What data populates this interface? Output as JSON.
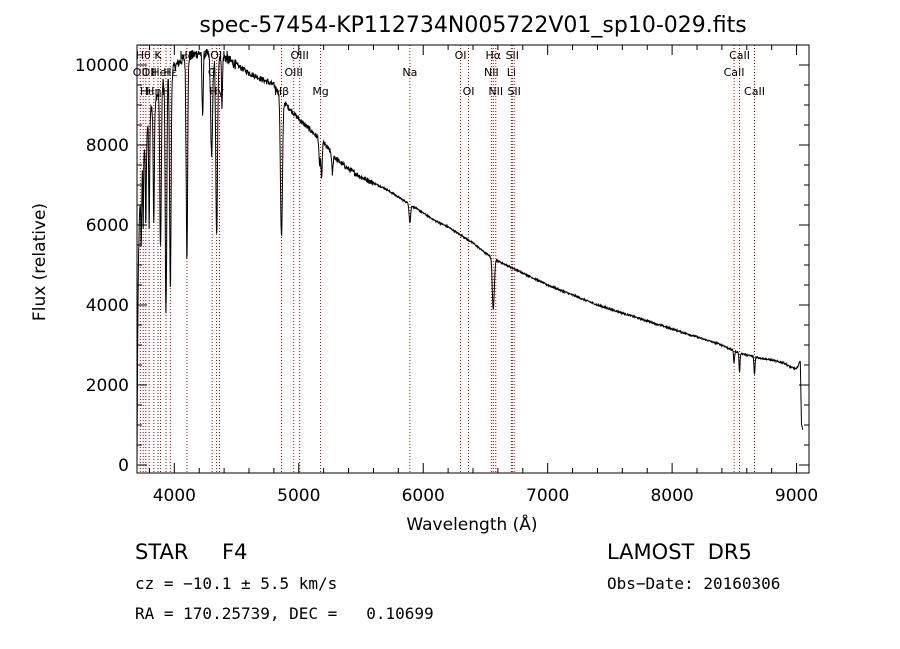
{
  "chart_data": {
    "type": "line",
    "title": "spec-57454-KP112734N005722V01_sp10-029.fits",
    "xlabel": "Wavelength (Å)",
    "ylabel": "Flux (relative)",
    "xlim": [
      3700,
      9100
    ],
    "ylim": [
      -200,
      10500
    ],
    "xticks": [
      4000,
      5000,
      6000,
      7000,
      8000,
      9000
    ],
    "xtick_labels": [
      "4000",
      "5000",
      "6000",
      "7000",
      "8000",
      "9000"
    ],
    "yticks": [
      0,
      2000,
      4000,
      6000,
      8000,
      10000
    ],
    "ytick_labels": [
      "0",
      "2000",
      "4000",
      "6000",
      "8000",
      "10000"
    ],
    "grid": false,
    "series": [
      {
        "continuum": [
          [
            3700,
            0
          ],
          [
            3705,
            2700
          ],
          [
            3712,
            5200
          ],
          [
            3720,
            6200
          ],
          [
            3750,
            7800
          ],
          [
            3800,
            8800
          ],
          [
            3850,
            9200
          ],
          [
            3900,
            9500
          ],
          [
            3950,
            9800
          ],
          [
            4000,
            9950
          ],
          [
            4050,
            10100
          ],
          [
            4100,
            10200
          ],
          [
            4150,
            10250
          ],
          [
            4200,
            10300
          ],
          [
            4300,
            10250
          ],
          [
            4400,
            10200
          ],
          [
            4500,
            10000
          ],
          [
            4600,
            9800
          ],
          [
            4700,
            9650
          ],
          [
            4800,
            9500
          ],
          [
            4900,
            9000
          ],
          [
            5000,
            8650
          ],
          [
            5100,
            8350
          ],
          [
            5200,
            8050
          ],
          [
            5300,
            7650
          ],
          [
            5400,
            7400
          ],
          [
            5500,
            7200
          ],
          [
            5600,
            7050
          ],
          [
            5700,
            6900
          ],
          [
            5800,
            6700
          ],
          [
            5900,
            6500
          ],
          [
            6000,
            6300
          ],
          [
            6100,
            6100
          ],
          [
            6200,
            5950
          ],
          [
            6300,
            5750
          ],
          [
            6400,
            5550
          ],
          [
            6500,
            5300
          ],
          [
            6600,
            5100
          ],
          [
            6700,
            4950
          ],
          [
            6800,
            4800
          ],
          [
            6900,
            4650
          ],
          [
            7000,
            4500
          ],
          [
            7200,
            4250
          ],
          [
            7400,
            4000
          ],
          [
            7600,
            3800
          ],
          [
            7800,
            3600
          ],
          [
            8000,
            3400
          ],
          [
            8200,
            3200
          ],
          [
            8400,
            3000
          ],
          [
            8500,
            2850
          ],
          [
            8600,
            2750
          ],
          [
            8700,
            2680
          ],
          [
            8800,
            2620
          ],
          [
            8900,
            2550
          ],
          [
            8950,
            2450
          ],
          [
            9000,
            2400
          ],
          [
            9030,
            2600
          ],
          [
            9040,
            1000
          ],
          [
            9050,
            900
          ]
        ],
        "absorption": [
          [
            3734,
            1500,
            3
          ],
          [
            3750,
            1800,
            3
          ],
          [
            3771,
            2200,
            4
          ],
          [
            3798,
            2800,
            4
          ],
          [
            3835,
            3000,
            5
          ],
          [
            3889,
            4000,
            6
          ],
          [
            3933,
            6000,
            6
          ],
          [
            3968,
            5500,
            6
          ],
          [
            4101,
            5000,
            6
          ],
          [
            4227,
            1500,
            5
          ],
          [
            4300,
            2500,
            8
          ],
          [
            4340,
            4500,
            7
          ],
          [
            4383,
            1200,
            4
          ],
          [
            4861,
            3500,
            8
          ],
          [
            5167,
            700,
            5
          ],
          [
            5183,
            1000,
            5
          ],
          [
            5270,
            500,
            5
          ],
          [
            5893,
            450,
            6
          ],
          [
            6563,
            1300,
            8
          ],
          [
            8498,
            300,
            4
          ],
          [
            8542,
            500,
            4
          ],
          [
            8662,
            450,
            4
          ]
        ]
      }
    ],
    "lines": [
      {
        "wave": 3727,
        "label": "OII",
        "row": 1
      },
      {
        "wave": 3750,
        "label": "Hθ",
        "row": 0
      },
      {
        "wave": 3771,
        "label": "Hι",
        "row": 2
      },
      {
        "wave": 3798,
        "label": "OII",
        "row": 1
      },
      {
        "wave": 3835,
        "label": "Hη",
        "row": 2
      },
      {
        "wave": 3869,
        "label": "K",
        "row": 0
      },
      {
        "wave": 3889,
        "label": "HeI",
        "row": 1
      },
      {
        "wave": 3933,
        "label": "H",
        "row": 2
      },
      {
        "wave": 3968,
        "label": "Hε",
        "row": 1
      },
      {
        "wave": 4101,
        "label": "Hδ",
        "row": 0
      },
      {
        "wave": 4304,
        "label": "G",
        "row": 1
      },
      {
        "wave": 4340,
        "label": "Hγ",
        "row": 2
      },
      {
        "wave": 4363,
        "label": "OIII",
        "row": 0
      },
      {
        "wave": 4861,
        "label": "Hβ",
        "row": 2
      },
      {
        "wave": 4959,
        "label": "OIII",
        "row": 1
      },
      {
        "wave": 5007,
        "label": "OIII",
        "row": 0
      },
      {
        "wave": 5175,
        "label": "Mg",
        "row": 2
      },
      {
        "wave": 5893,
        "label": "Na",
        "row": 1
      },
      {
        "wave": 6300,
        "label": "OI",
        "row": 0
      },
      {
        "wave": 6364,
        "label": "OI",
        "row": 2
      },
      {
        "wave": 6548,
        "label": "NII",
        "row": 1
      },
      {
        "wave": 6563,
        "label": "Hα",
        "row": 0
      },
      {
        "wave": 6583,
        "label": "NII",
        "row": 2
      },
      {
        "wave": 6708,
        "label": "Li",
        "row": 1
      },
      {
        "wave": 6716,
        "label": "SII",
        "row": 0
      },
      {
        "wave": 6731,
        "label": "SII",
        "row": 2
      },
      {
        "wave": 8498,
        "label": "CaII",
        "row": 1
      },
      {
        "wave": 8542,
        "label": "CaII",
        "row": 0
      },
      {
        "wave": 8662,
        "label": "CaII",
        "row": 2
      }
    ]
  },
  "info": {
    "class_label": "STAR",
    "subclass": "F4",
    "survey": "LAMOST  DR5",
    "cz": "cz = −10.1 ± 5.5 km/s",
    "obs_date": "Obs−Date: 20160306",
    "radec": "RA = 170.25739, DEC =   0.10699"
  },
  "colors": {
    "line_marker": "#b40000",
    "spectrum": "#000000",
    "axes": "#000000"
  }
}
